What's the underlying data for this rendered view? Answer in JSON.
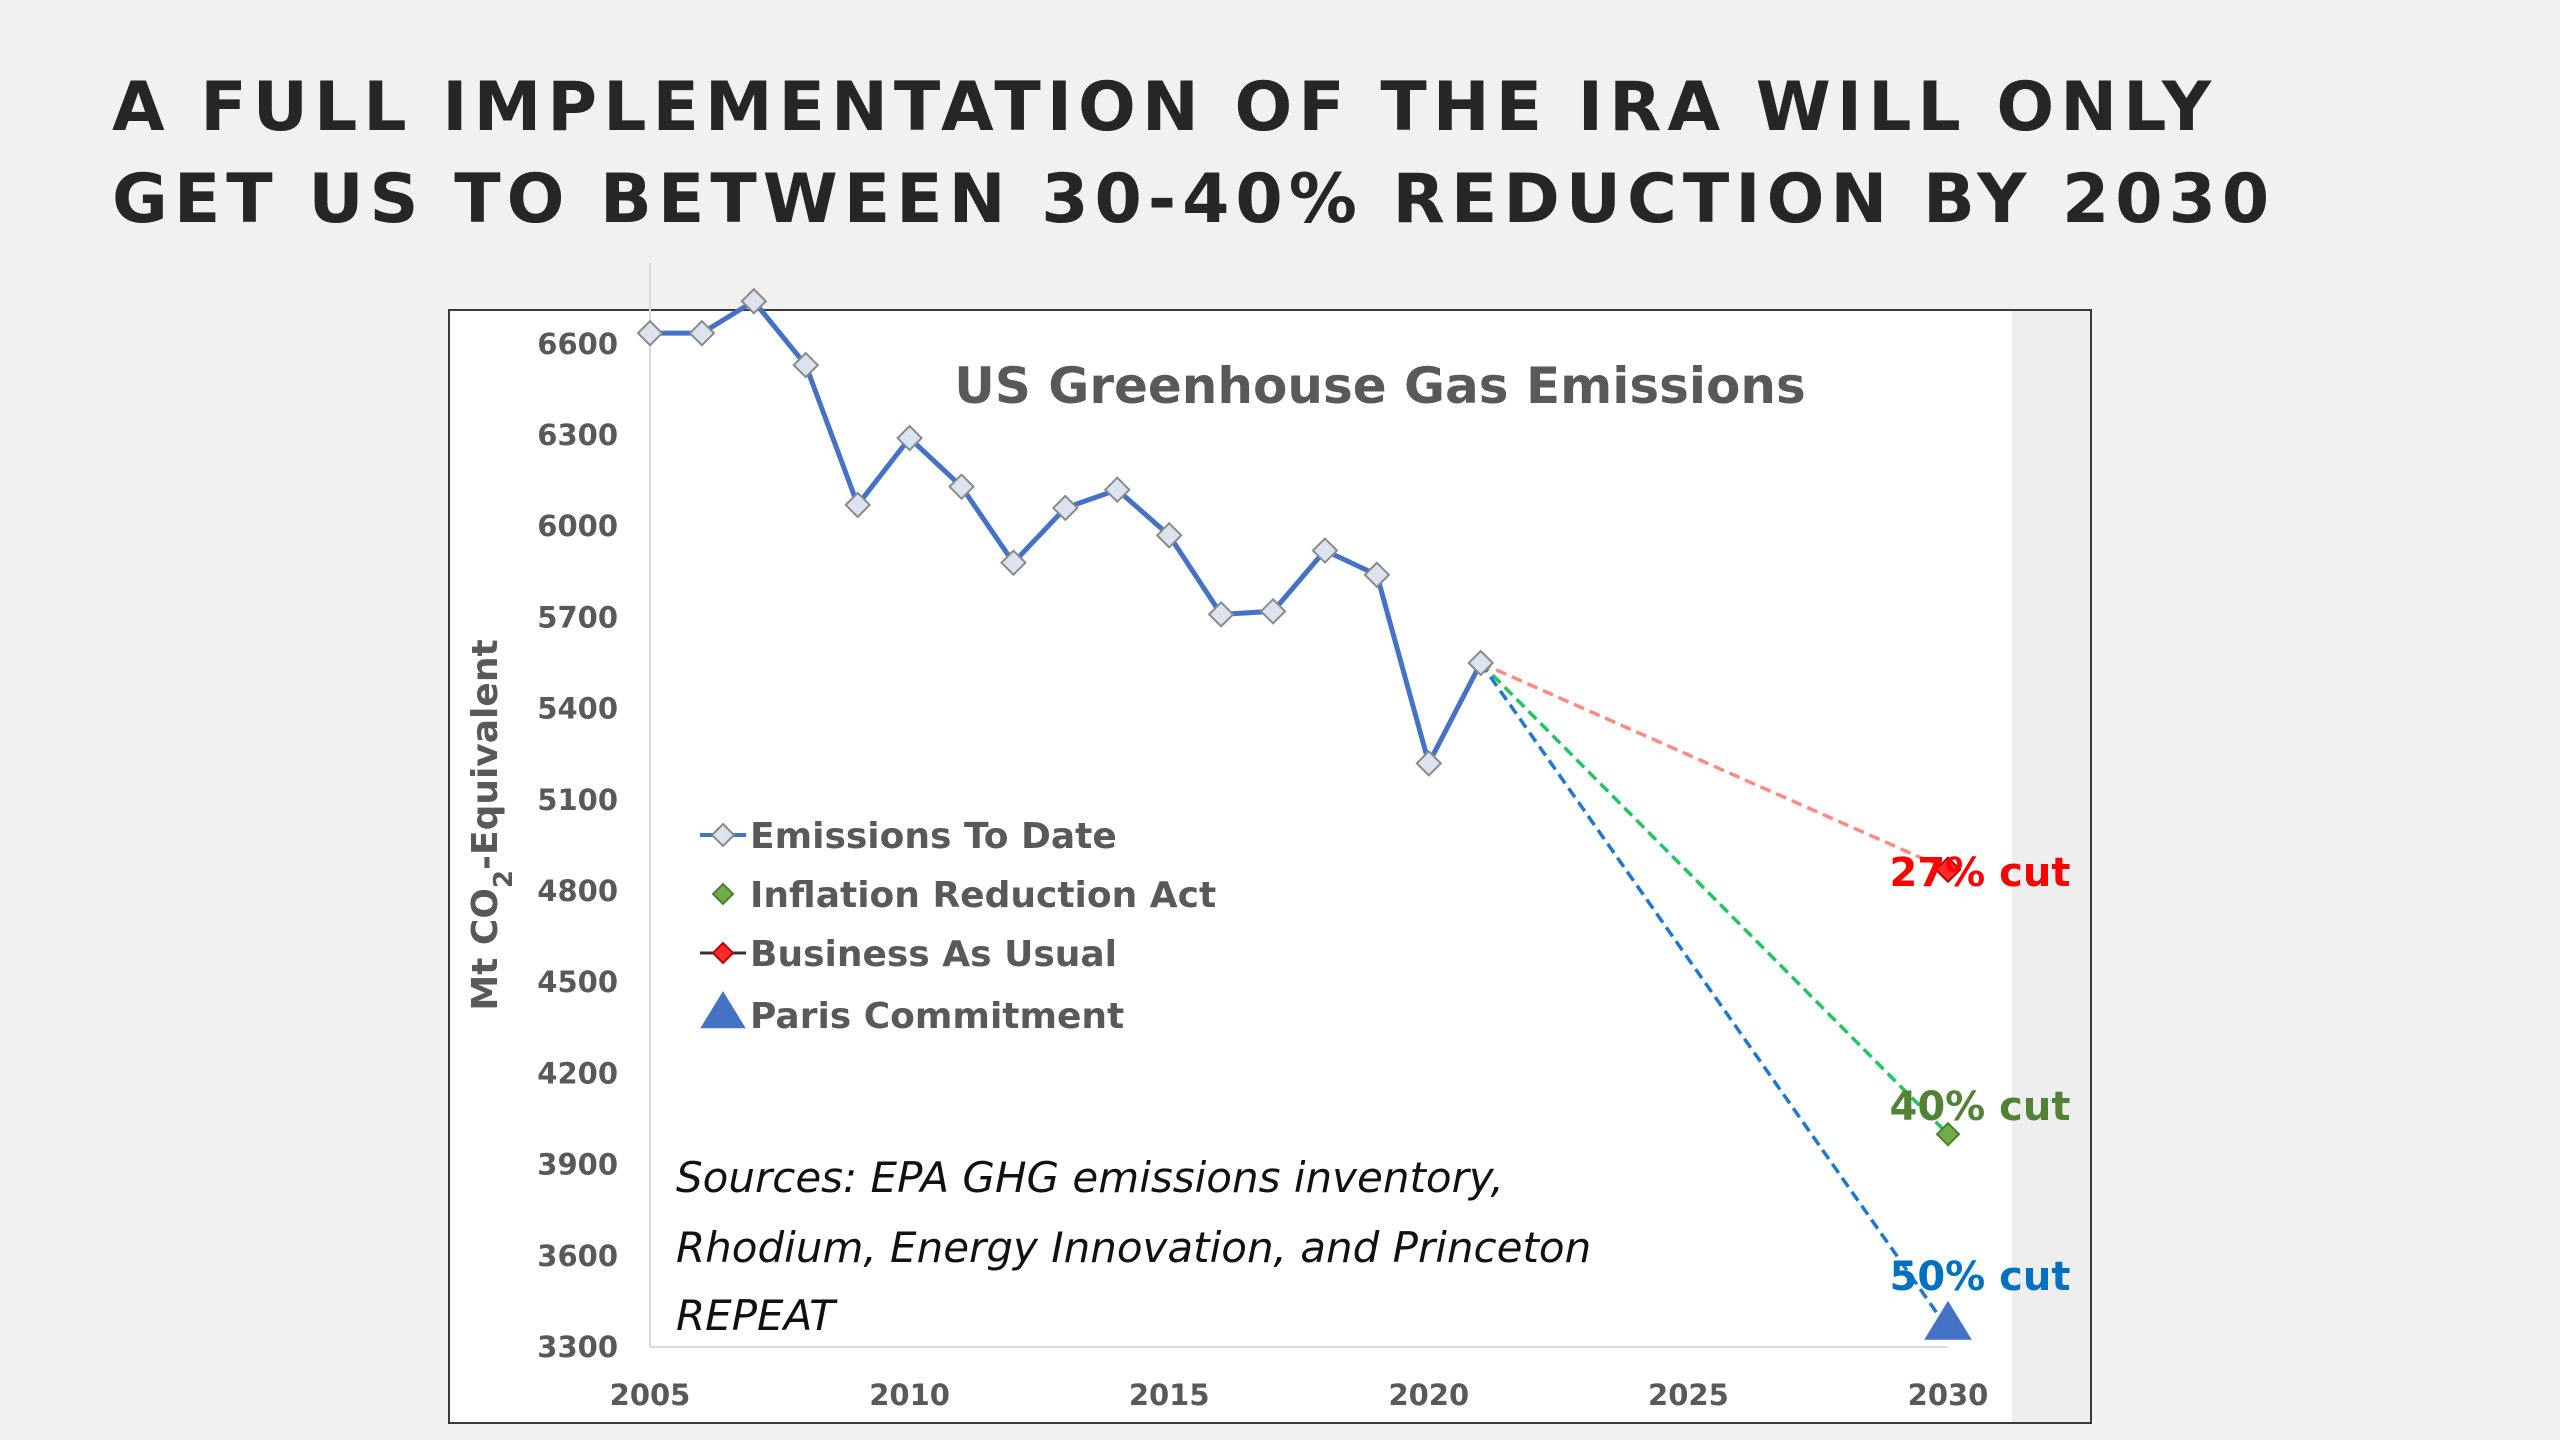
{
  "slide": {
    "title_line1": "A FULL IMPLEMENTATION OF THE IRA WILL ONLY",
    "title_line2": "GET US TO BETWEEN 30-40% REDUCTION BY 2030"
  },
  "chart_data": {
    "type": "line",
    "title": "US Greenhouse Gas Emissions",
    "ylabel": "Mt CO2-Equivalent",
    "xlabel": "",
    "xlim": [
      2005,
      2030
    ],
    "ylim": [
      3300,
      6800
    ],
    "x_ticks": [
      2005,
      2010,
      2015,
      2020,
      2025,
      2030
    ],
    "y_ticks": [
      3300,
      3600,
      3900,
      4200,
      4500,
      4800,
      5100,
      5400,
      5700,
      6000,
      6300,
      6600
    ],
    "legend_position": "center-left",
    "series": [
      {
        "name": "Emissions To Date",
        "color": "#4472c4",
        "marker": "diamond",
        "x": [
          2005,
          2006,
          2007,
          2008,
          2009,
          2010,
          2011,
          2012,
          2013,
          2014,
          2015,
          2016,
          2017,
          2018,
          2019,
          2020,
          2021
        ],
        "y": [
          6635,
          6635,
          6740,
          6530,
          6070,
          6290,
          6130,
          5880,
          6060,
          6120,
          5970,
          5710,
          5720,
          5920,
          5840,
          5220,
          5550
        ]
      },
      {
        "name": "Inflation Reduction Act",
        "color": "#70ad47",
        "marker": "diamond",
        "x": [
          2021,
          2030
        ],
        "y": [
          5550,
          4000
        ]
      },
      {
        "name": "Business As Usual",
        "color": "#ff0000",
        "marker": "diamond",
        "x": [
          2021,
          2030
        ],
        "y": [
          5550,
          4870
        ]
      },
      {
        "name": "Paris Commitment",
        "color": "#4472c4",
        "marker": "triangle",
        "x": [
          2021,
          2030
        ],
        "y": [
          5550,
          3360
        ]
      }
    ],
    "annotations": [
      {
        "text": "27% cut",
        "color": "#ff0000"
      },
      {
        "text": "40% cut",
        "color": "#548235"
      },
      {
        "text": "50% cut",
        "color": "#0070c0"
      }
    ],
    "source_note": [
      "Sources: EPA GHG emissions inventory,",
      "Rhodium, Energy Innovation, and Princeton",
      "REPEAT"
    ]
  }
}
